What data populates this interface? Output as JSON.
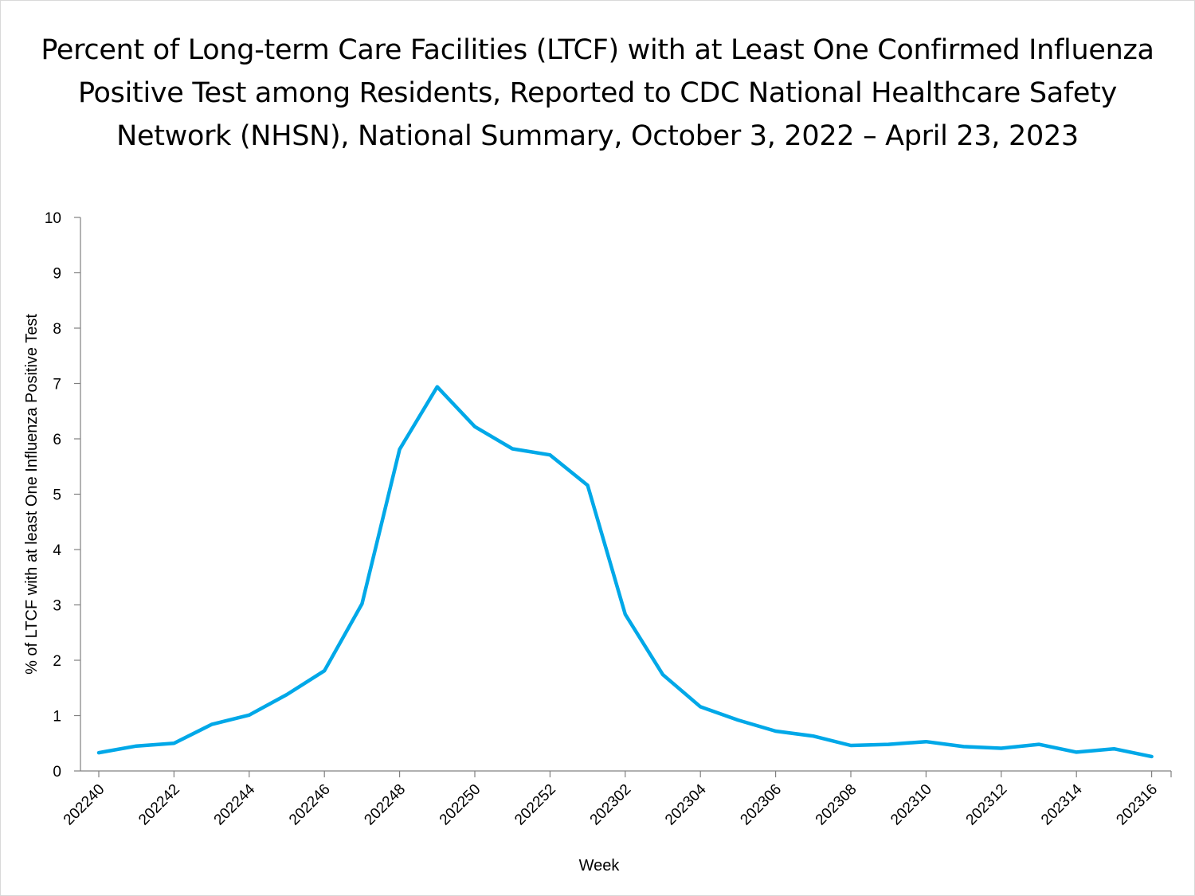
{
  "title_lines": [
    "Percent of Long-term Care Facilities (LTCF) with at Least One Confirmed Influenza",
    "Positive Test among Residents, Reported to CDC National Healthcare Safety",
    "Network (NHSN), National Summary, October 3, 2022 – April 23, 2023"
  ],
  "chart_data": {
    "type": "line",
    "title": "Percent of Long-term Care Facilities (LTCF) with at Least One Confirmed Influenza Positive Test among Residents, Reported to CDC National Healthcare Safety Network (NHSN), National Summary, October 3, 2022 – April 23, 2023",
    "xlabel": "Week",
    "ylabel": "% of LTCF with at least One Influenza Positive Test",
    "ylim": [
      0,
      10
    ],
    "yticks": [
      0,
      1,
      2,
      3,
      4,
      5,
      6,
      7,
      8,
      9,
      10
    ],
    "x": [
      "202240",
      "202241",
      "202242",
      "202243",
      "202244",
      "202245",
      "202246",
      "202247",
      "202248",
      "202249",
      "202250",
      "202251",
      "202252",
      "202301",
      "202302",
      "202303",
      "202304",
      "202305",
      "202306",
      "202307",
      "202308",
      "202309",
      "202310",
      "202311",
      "202312",
      "202313",
      "202314",
      "202315",
      "202316"
    ],
    "x_tick_labels": [
      "202240",
      "202242",
      "202244",
      "202246",
      "202248",
      "202250",
      "202252",
      "202302",
      "202304",
      "202306",
      "202308",
      "202310",
      "202312",
      "202314",
      "202316"
    ],
    "series": [
      {
        "color": "#00a8e8",
        "values": [
          0.33,
          0.45,
          0.5,
          0.84,
          1.01,
          1.38,
          1.81,
          3.02,
          5.81,
          6.94,
          6.22,
          5.82,
          5.71,
          5.16,
          2.83,
          1.74,
          1.16,
          0.92,
          0.72,
          0.63,
          0.46,
          0.48,
          0.53,
          0.44,
          0.41,
          0.48,
          0.34,
          0.4,
          0.26
        ]
      }
    ],
    "grid": false,
    "legend": "none"
  }
}
